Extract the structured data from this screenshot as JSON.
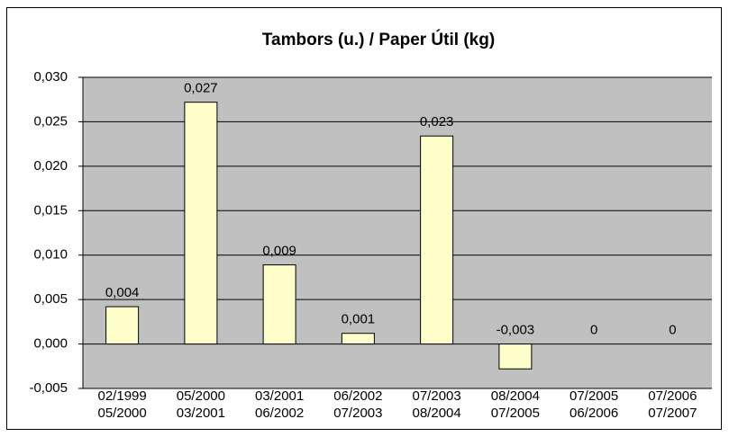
{
  "chart_data": {
    "type": "bar",
    "title": "Tambors (u.) / Paper Útil (kg)",
    "categories": [
      [
        "02/1999",
        "05/2000"
      ],
      [
        "05/2000",
        "03/2001"
      ],
      [
        "03/2001",
        "06/2002"
      ],
      [
        "06/2002",
        "07/2003"
      ],
      [
        "07/2003",
        "08/2004"
      ],
      [
        "08/2004",
        "07/2005"
      ],
      [
        "07/2005",
        "06/2006"
      ],
      [
        "07/2006",
        "07/2007"
      ]
    ],
    "values": [
      0.0042,
      0.0272,
      0.0089,
      0.0012,
      0.0234,
      -0.0028,
      0,
      0
    ],
    "value_labels": [
      "0,004",
      "0,027",
      "0,009",
      "0,001",
      "0,023",
      "-0,003",
      "0",
      "0"
    ],
    "color": "#ffffcc",
    "ylim": [
      -0.005,
      0.03
    ],
    "yticks": [
      {
        "value": -0.005,
        "label": "-0,005"
      },
      {
        "value": 0,
        "label": "0,000"
      },
      {
        "value": 0.005,
        "label": "0,005"
      },
      {
        "value": 0.01,
        "label": "0,010"
      },
      {
        "value": 0.015,
        "label": "0,015"
      },
      {
        "value": 0.02,
        "label": "0,020"
      },
      {
        "value": 0.025,
        "label": "0,025"
      },
      {
        "value": 0.03,
        "label": "0,030"
      }
    ],
    "grid": true
  }
}
